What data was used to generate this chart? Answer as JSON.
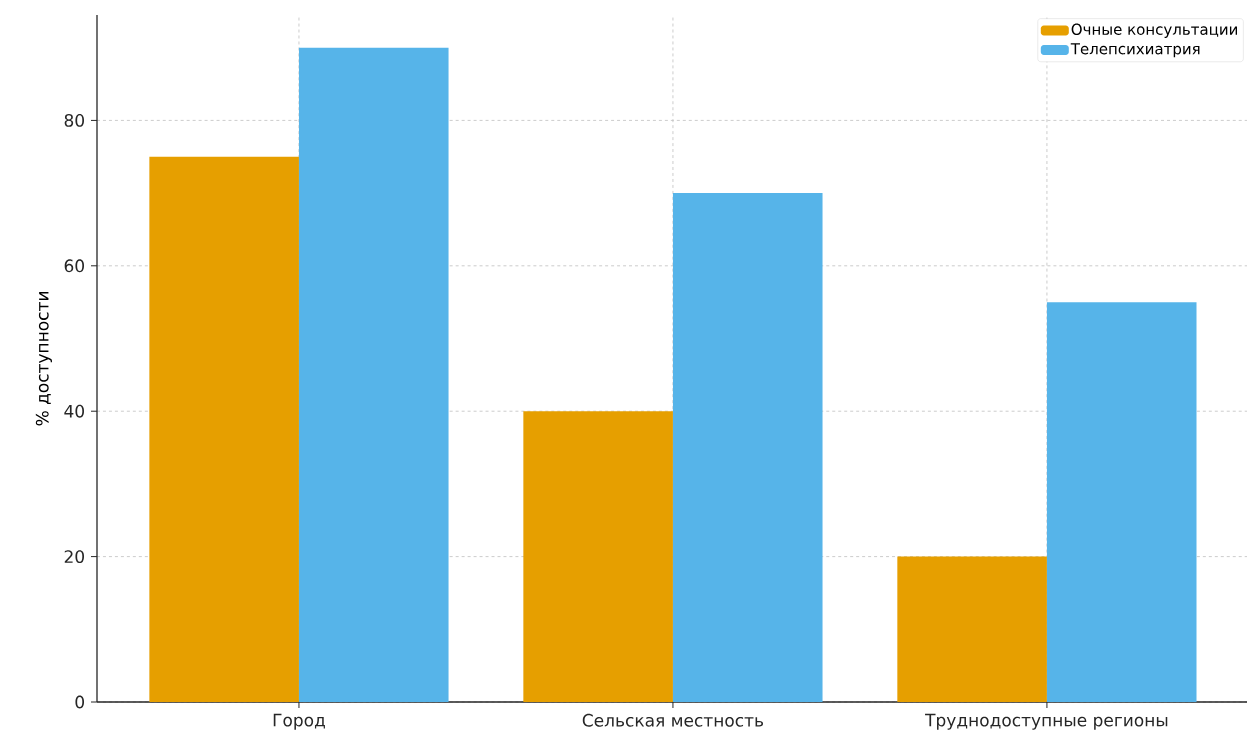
{
  "chart_data": {
    "type": "bar",
    "ylabel": "% доступности",
    "categories": [
      "Город",
      "Сельская местность",
      "Труднодоступные регионы"
    ],
    "series": [
      {
        "name": "Очные консультации",
        "color": "#e69f00",
        "values": [
          75,
          40,
          20
        ]
      },
      {
        "name": "Телепсихиатрия",
        "color": "#56b4e9",
        "values": [
          90,
          70,
          55
        ]
      }
    ],
    "ylim": [
      0,
      94.5
    ],
    "yticks": [
      0,
      20,
      40,
      60,
      80
    ],
    "grid": true,
    "legend": "top right"
  }
}
